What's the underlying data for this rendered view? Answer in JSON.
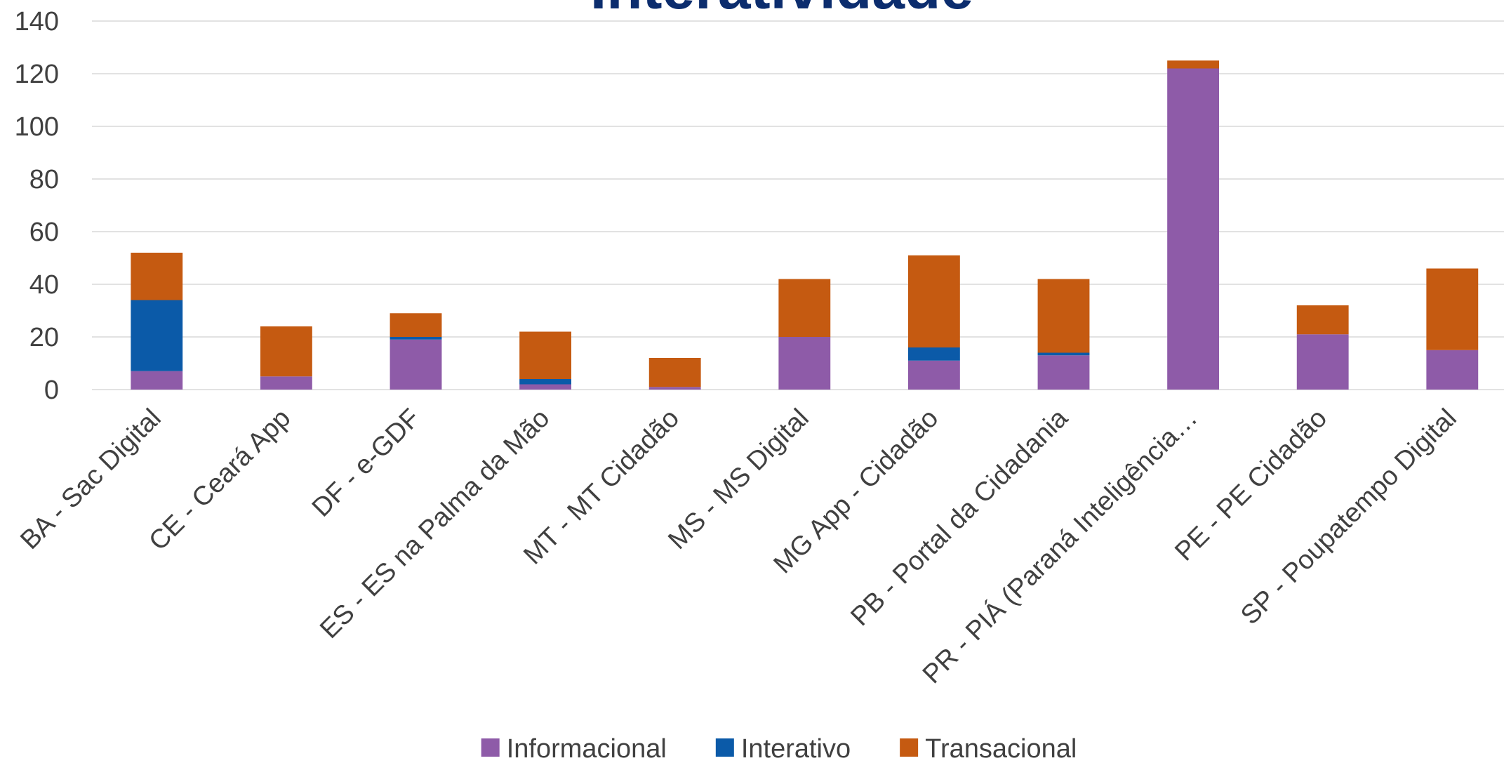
{
  "chart_data": {
    "type": "stacked_bar",
    "title": "Interatividade",
    "categories": [
      "BA - Sac Digital",
      "CE - Ceará App",
      "DF - e-GDF",
      "ES - ES na Palma da Mão",
      "MT - MT Cidadão",
      "MS - MS Digital",
      "MG App - Cidadão",
      "PB - Portal da Cidadania",
      "PR - PIÁ (Paraná Inteligência…",
      "PE - PE Cidadão",
      "SP - Poupatempo Digital"
    ],
    "series": [
      {
        "name": "Informacional",
        "color": "#8e5ba8",
        "values": [
          7,
          5,
          19,
          2,
          1,
          20,
          11,
          13,
          122,
          21,
          15
        ]
      },
      {
        "name": "Interativo",
        "color": "#0b5aa8",
        "values": [
          27,
          0,
          1,
          2,
          0,
          0,
          5,
          1,
          0,
          0,
          0
        ]
      },
      {
        "name": "Transacional",
        "color": "#c55a11",
        "values": [
          18,
          19,
          9,
          18,
          11,
          22,
          35,
          28,
          3,
          11,
          31
        ]
      }
    ],
    "ylim": [
      0,
      140
    ],
    "yticks": [
      0,
      20,
      40,
      60,
      80,
      100,
      120,
      140
    ],
    "grid": true,
    "legend": "bottom"
  }
}
